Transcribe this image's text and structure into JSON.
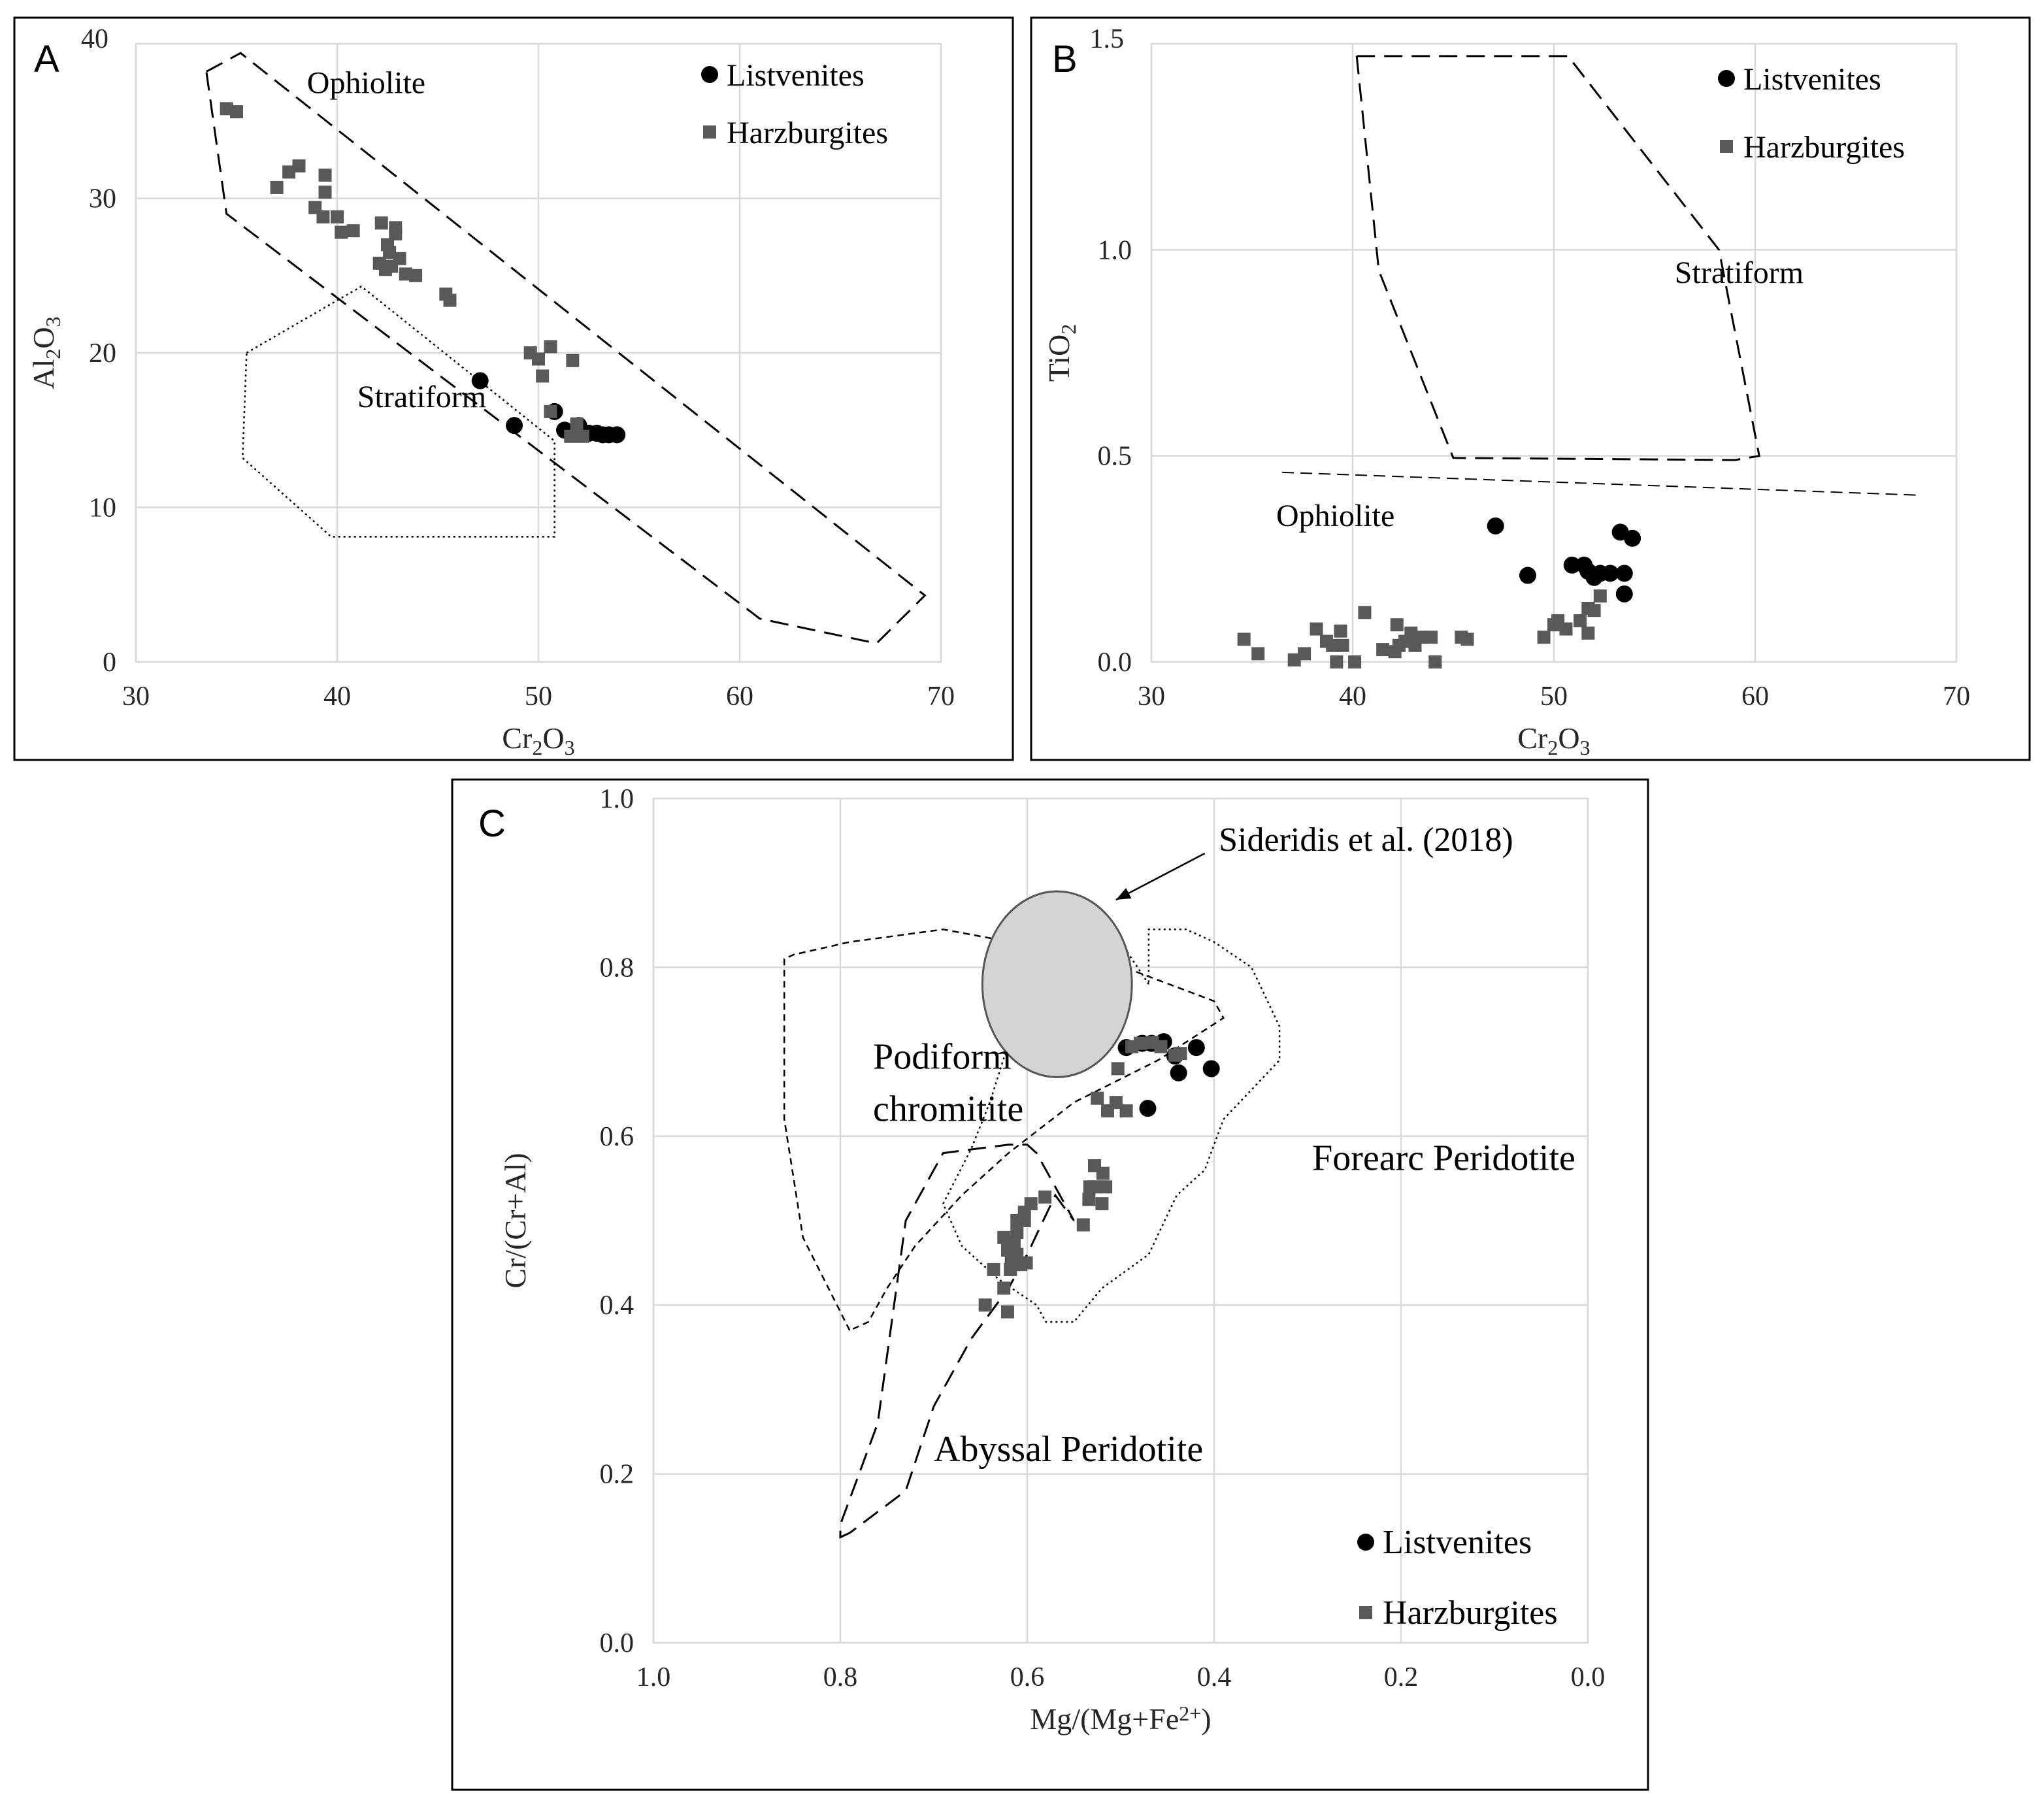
{
  "chart_data": [
    {
      "panel": "A",
      "type": "scatter",
      "xlabel_main": "Cr",
      "xlabel_sub1": "2",
      "xlabel_mid": "O",
      "xlabel_sub2": "3",
      "ylabel_main": "Al",
      "ylabel_sub1": "2",
      "ylabel_mid": "O",
      "ylabel_sub2": "3",
      "xlim": [
        30,
        70
      ],
      "ylim": [
        0,
        40
      ],
      "xticks": [
        "30",
        "40",
        "50",
        "60",
        "70"
      ],
      "yticks": [
        "0",
        "10",
        "20",
        "30",
        "40"
      ],
      "grid": true,
      "legend": [
        "Listvenites",
        "Harzburgites"
      ],
      "legend_position": "top-right",
      "regions": [
        {
          "name": "Ophiolite",
          "style": "dashed",
          "label_at": [
            38.5,
            36.8
          ],
          "outline": [
            [
              33.5,
              38.2
            ],
            [
              35.2,
              39.4
            ],
            [
              69.2,
              4.3
            ],
            [
              66.8,
              1.2
            ],
            [
              61,
              2.8
            ],
            [
              34.5,
              29
            ]
          ]
        },
        {
          "name": "Stratiform",
          "style": "dotted",
          "label_at": [
            41,
            16.5
          ],
          "outline": [
            [
              35.5,
              20
            ],
            [
              41.2,
              24.3
            ],
            [
              50.8,
              14.3
            ],
            [
              50.8,
              8.1
            ],
            [
              39.7,
              8.1
            ],
            [
              35.3,
              13.2
            ]
          ]
        }
      ],
      "series": [
        {
          "name": "Listvenites",
          "marker": "circle",
          "x": [
            47.1,
            48.8,
            50.8,
            51.3,
            51.7,
            52,
            52.5,
            52.9,
            53.2,
            53.5,
            53.9
          ],
          "y": [
            18.2,
            15.3,
            16.2,
            15.0,
            14.9,
            15.3,
            14.8,
            14.8,
            14.7,
            14.7,
            14.7
          ]
        },
        {
          "name": "Harzburgites",
          "marker": "square",
          "x": [
            34.5,
            35,
            37,
            37.6,
            38.1,
            39.4,
            39.4,
            38.9,
            39.3,
            40,
            40.2,
            40.8,
            42.2,
            42.5,
            42.6,
            42.9,
            42.9,
            42.7,
            43.1,
            43.4,
            43.9,
            45.4,
            45.6,
            42.1,
            42.4,
            49.6,
            50,
            50.2,
            50.6,
            51.7,
            50.6,
            51.9,
            51.6,
            52.2
          ],
          "y": [
            35.8,
            35.6,
            30.7,
            31.7,
            32.1,
            31.5,
            30.4,
            29.4,
            28.8,
            28.8,
            27.8,
            27.9,
            28.4,
            27.0,
            26.5,
            28.1,
            27.7,
            25.6,
            26.1,
            25.1,
            25.0,
            23.8,
            23.4,
            25.8,
            25.4,
            20.0,
            19.6,
            18.5,
            20.4,
            19.5,
            16.2,
            15.4,
            14.6,
            14.6
          ]
        }
      ]
    },
    {
      "panel": "B",
      "type": "scatter",
      "xlabel_main": "Cr",
      "xlabel_sub1": "2",
      "xlabel_mid": "O",
      "xlabel_sub2": "3",
      "ylabel_main": "TiO",
      "ylabel_sub1": "2",
      "xlim": [
        30,
        70
      ],
      "ylim": [
        0,
        1.5
      ],
      "xticks": [
        "30",
        "40",
        "50",
        "60",
        "70"
      ],
      "yticks": [
        "0.0",
        "0.5",
        "1.0",
        "1.5"
      ],
      "grid": true,
      "legend": [
        "Listvenites",
        "Harzburgites"
      ],
      "legend_position": "top-right",
      "regions": [
        {
          "name": "Stratiform",
          "style": "dashed",
          "label_at": [
            56,
            0.92
          ],
          "outline": [
            [
              40.2,
              1.47
            ],
            [
              50.7,
              1.47
            ],
            [
              58.2,
              1.0
            ],
            [
              60.2,
              0.5
            ],
            [
              59,
              0.49
            ],
            [
              45,
              0.495
            ],
            [
              41.3,
              0.95
            ],
            [
              40.2,
              1.47
            ]
          ]
        },
        {
          "name": "Ophiolite",
          "style": "dashed-divider",
          "label_at": [
            36.2,
            0.33
          ],
          "outline": [
            [
              36.5,
              0.46
            ],
            [
              68,
              0.405
            ]
          ]
        }
      ],
      "series": [
        {
          "name": "Listvenites",
          "marker": "circle",
          "x": [
            47.1,
            48.7,
            50.9,
            51.5,
            51.7,
            52,
            52.3,
            52.8,
            53.3,
            53.5,
            53.9,
            53.5
          ],
          "y": [
            0.33,
            0.21,
            0.235,
            0.235,
            0.22,
            0.205,
            0.215,
            0.215,
            0.315,
            0.215,
            0.3,
            0.165
          ]
        },
        {
          "name": "Harzburgites",
          "marker": "square",
          "x": [
            34.6,
            35.3,
            37.1,
            37.6,
            38.2,
            38.7,
            39,
            39.4,
            39.5,
            39.2,
            40.1,
            40.6,
            41.5,
            42.1,
            42.2,
            42.3,
            42.6,
            42.9,
            43.1,
            43.4,
            43.9,
            44.1,
            45.4,
            45.7,
            49.5,
            50,
            50.2,
            50.6,
            51.3,
            51.7,
            52,
            51.7,
            52.3
          ],
          "y": [
            0.055,
            0.02,
            0.005,
            0.02,
            0.08,
            0.05,
            0.04,
            0.075,
            0.04,
            0.0,
            0.0,
            0.12,
            0.03,
            0.025,
            0.09,
            0.04,
            0.05,
            0.07,
            0.04,
            0.06,
            0.06,
            0.0,
            0.06,
            0.055,
            0.06,
            0.09,
            0.1,
            0.08,
            0.1,
            0.07,
            0.125,
            0.13,
            0.16
          ]
        }
      ]
    },
    {
      "panel": "C",
      "type": "scatter",
      "xlabel_main": "Mg/(Mg+Fe",
      "xlabel_sup": "2+",
      "xlabel_end": ")",
      "ylabel_main": "Cr/(Cr+Al)",
      "xlim": [
        1.0,
        0.0
      ],
      "ylim": [
        0.0,
        1.0
      ],
      "xticks": [
        "1.0",
        "0.8",
        "0.6",
        "0.4",
        "0.2",
        "0.0"
      ],
      "yticks": [
        "0.0",
        "0.2",
        "0.4",
        "0.6",
        "0.8",
        "1.0"
      ],
      "grid": true,
      "legend": [
        "Listvenites",
        "Harzburgites"
      ],
      "legend_position": "bottom-right",
      "annotation": "Sideridis et al. (2018)",
      "regions": [
        {
          "name": "Podiform chromitite",
          "style": "short-dashed",
          "label_lines": [
            "Podiform",
            "chromitite"
          ],
          "label_at": [
            0.765,
            0.68
          ],
          "outline": [
            [
              0.79,
              0.37
            ],
            [
              0.84,
              0.48
            ],
            [
              0.86,
              0.62
            ],
            [
              0.86,
              0.81
            ],
            [
              0.85,
              0.815
            ],
            [
              0.79,
              0.83
            ],
            [
              0.69,
              0.845
            ],
            [
              0.52,
              0.81
            ],
            [
              0.4,
              0.76
            ],
            [
              0.39,
              0.74
            ],
            [
              0.46,
              0.69
            ],
            [
              0.55,
              0.64
            ],
            [
              0.62,
              0.58
            ],
            [
              0.67,
              0.53
            ],
            [
              0.72,
              0.47
            ],
            [
              0.75,
              0.42
            ],
            [
              0.77,
              0.38
            ]
          ]
        },
        {
          "name": "Forearc Peridotite",
          "style": "dotted",
          "label_at": [
            0.295,
            0.56
          ],
          "outline": [
            [
              0.47,
              0.78
            ],
            [
              0.5,
              0.83
            ],
            [
              0.53,
              0.835
            ],
            [
              0.56,
              0.845
            ],
            [
              0.575,
              0.81
            ],
            [
              0.6,
              0.77
            ],
            [
              0.62,
              0.71
            ],
            [
              0.64,
              0.64
            ],
            [
              0.66,
              0.585
            ],
            [
              0.69,
              0.52
            ],
            [
              0.67,
              0.47
            ],
            [
              0.63,
              0.43
            ],
            [
              0.59,
              0.4
            ],
            [
              0.58,
              0.38
            ],
            [
              0.55,
              0.38
            ],
            [
              0.52,
              0.42
            ],
            [
              0.47,
              0.46
            ],
            [
              0.44,
              0.53
            ],
            [
              0.41,
              0.56
            ],
            [
              0.39,
              0.62
            ],
            [
              0.33,
              0.69
            ],
            [
              0.33,
              0.73
            ],
            [
              0.36,
              0.8
            ],
            [
              0.4,
              0.83
            ],
            [
              0.43,
              0.845
            ],
            [
              0.47,
              0.845
            ]
          ]
        },
        {
          "name": "Abyssal Peridotite",
          "style": "dashed",
          "label_at": [
            0.7,
            0.215
          ],
          "outline": [
            [
              0.8,
              0.125
            ],
            [
              0.79,
              0.13
            ],
            [
              0.73,
              0.18
            ],
            [
              0.7,
              0.28
            ],
            [
              0.66,
              0.36
            ],
            [
              0.62,
              0.42
            ],
            [
              0.6,
              0.46
            ],
            [
              0.57,
              0.53
            ],
            [
              0.55,
              0.5
            ],
            [
              0.59,
              0.58
            ],
            [
              0.6,
              0.59
            ],
            [
              0.62,
              0.59
            ],
            [
              0.69,
              0.58
            ],
            [
              0.73,
              0.5
            ],
            [
              0.76,
              0.26
            ],
            [
              0.79,
              0.17
            ],
            [
              0.8,
              0.14
            ]
          ]
        }
      ],
      "ellipse": {
        "cx": 0.568,
        "cy": 0.78,
        "rx": 0.08,
        "ry": 0.11,
        "fill": "#d4d4d4"
      },
      "series": [
        {
          "name": "Listvenites",
          "marker": "circle",
          "x": [
            0.494,
            0.477,
            0.467,
            0.454,
            0.442,
            0.438,
            0.419,
            0.403,
            0.471
          ],
          "y": [
            0.705,
            0.71,
            0.71,
            0.712,
            0.695,
            0.675,
            0.705,
            0.68,
            0.633
          ]
        },
        {
          "name": "Harzburgites",
          "marker": "square",
          "x": [
            0.488,
            0.479,
            0.466,
            0.457,
            0.442,
            0.436,
            0.503,
            0.494,
            0.525,
            0.514,
            0.505,
            0.533,
            0.527,
            0.54,
            0.528,
            0.519,
            0.516,
            0.534,
            0.52,
            0.581,
            0.596,
            0.603,
            0.611,
            0.611,
            0.603,
            0.614,
            0.625,
            0.621,
            0.617,
            0.611,
            0.601,
            0.636,
            0.618,
            0.645,
            0.621,
            0.607,
            0.625
          ],
          "y": [
            0.706,
            0.71,
            0.711,
            0.706,
            0.696,
            0.698,
            0.68,
            0.63,
            0.645,
            0.63,
            0.64,
            0.54,
            0.54,
            0.495,
            0.565,
            0.556,
            0.54,
            0.525,
            0.52,
            0.528,
            0.52,
            0.51,
            0.5,
            0.486,
            0.5,
            0.475,
            0.48,
            0.465,
            0.455,
            0.46,
            0.45,
            0.442,
            0.442,
            0.4,
            0.392,
            0.448,
            0.42
          ]
        }
      ]
    }
  ],
  "colors": {
    "listvenites": "#000000",
    "harzburgites": "#595959",
    "grid": "#d9d9d9",
    "ellipse": "#d4d4d4"
  }
}
